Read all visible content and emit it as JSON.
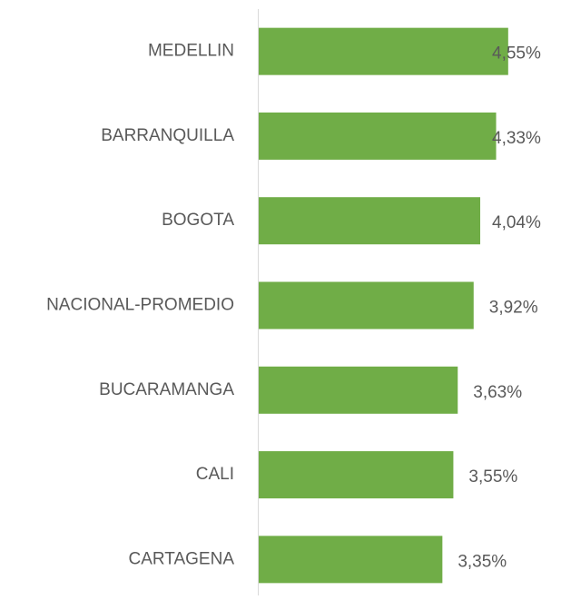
{
  "chart_data": {
    "type": "bar",
    "orientation": "horizontal",
    "categories": [
      "MEDELLIN",
      "BARRANQUILLA",
      "BOGOTA",
      "NACIONAL-PROMEDIO",
      "BUCARAMANGA",
      "CALI",
      "CARTAGENA"
    ],
    "values": [
      4.55,
      4.33,
      4.04,
      3.92,
      3.63,
      3.55,
      3.35
    ],
    "value_labels": [
      "4,55%",
      "4,33%",
      "4,04%",
      "3,92%",
      "3,63%",
      "3,55%",
      "3,35%"
    ],
    "color": "#70ad47",
    "xlim": [
      0,
      5
    ]
  }
}
